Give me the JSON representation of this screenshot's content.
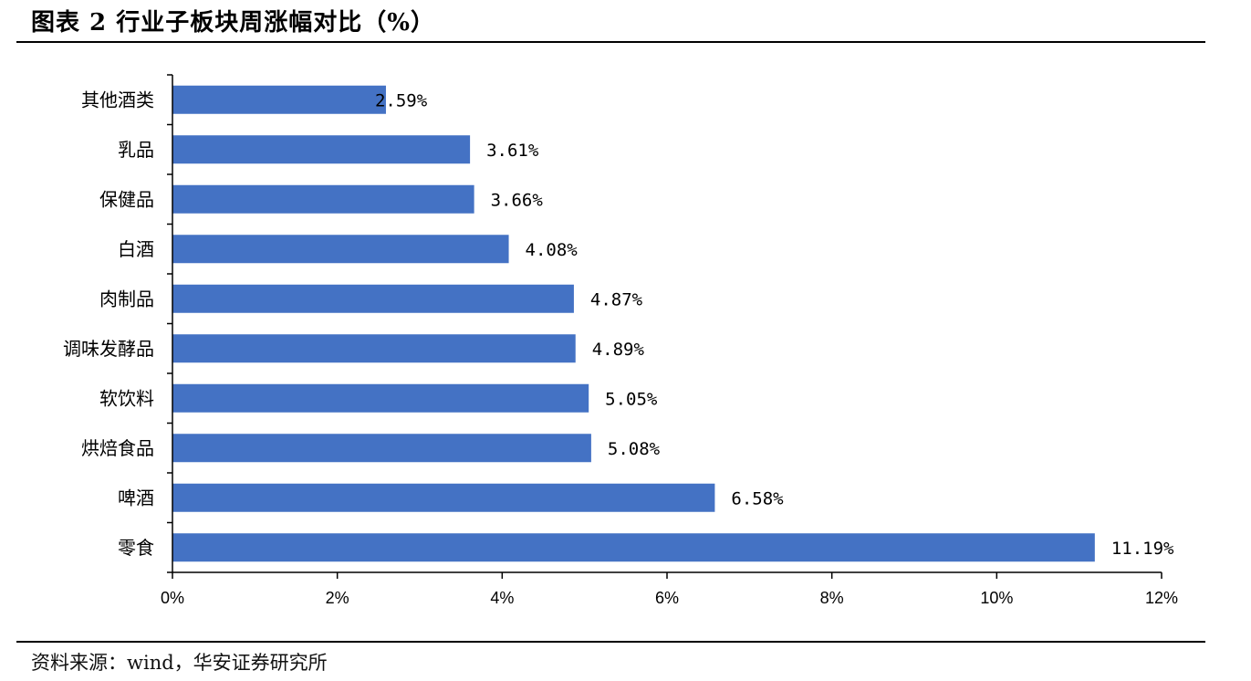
{
  "header": {
    "title": "图表 2 行业子板块周涨幅对比（%）"
  },
  "footer": {
    "source": "资料来源：wind，华安证券研究所"
  },
  "colors": {
    "bar": "#4472C4",
    "axis": "#000000"
  },
  "chart_data": {
    "type": "bar",
    "orientation": "horizontal",
    "title": "行业子板块周涨幅对比（%）",
    "xlabel": "",
    "ylabel": "",
    "categories": [
      "其他酒类",
      "乳品",
      "保健品",
      "白酒",
      "肉制品",
      "调味发酵品",
      "软饮料",
      "烘焙食品",
      "啤酒",
      "零食"
    ],
    "values": [
      2.59,
      3.61,
      3.66,
      4.08,
      4.87,
      4.89,
      5.05,
      5.08,
      6.58,
      11.19
    ],
    "value_labels": [
      "2.59%",
      "3.61%",
      "3.66%",
      "4.08%",
      "4.87%",
      "4.89%",
      "5.05%",
      "5.08%",
      "6.58%",
      "11.19%"
    ],
    "xlim": [
      0,
      12
    ],
    "xticks": [
      0,
      2,
      4,
      6,
      8,
      10,
      12
    ],
    "xtick_labels": [
      "0%",
      "2%",
      "4%",
      "6%",
      "8%",
      "10%",
      "12%"
    ],
    "grid": false,
    "legend": "none"
  }
}
